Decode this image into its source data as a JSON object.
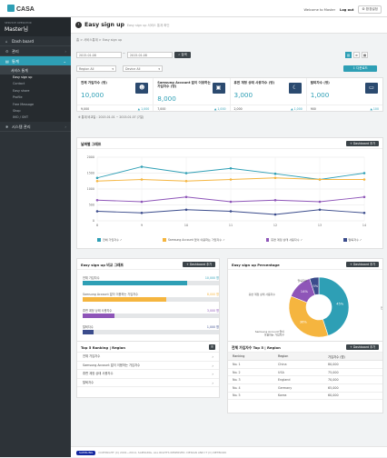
{
  "app": {
    "logo": "CASA"
  },
  "topbar": {
    "welcome": "Welcome to Master",
    "logout": "Log out",
    "setup": "환경설정"
  },
  "sidebar": {
    "role": "SERVICE OPERATOR",
    "user": "Master님",
    "items": [
      {
        "label": "Dash board"
      },
      {
        "label": "관리"
      },
      {
        "label": "통계"
      }
    ],
    "sub_title": "서비스 통계",
    "sub_items": [
      "Easy sign up",
      "Contact",
      "Easy share",
      "Profile",
      "Free Message",
      "Shop",
      "IMO / SMT"
    ],
    "bottom_item": "시스템 관리"
  },
  "page": {
    "title": "Easy sign up",
    "subtitle": "Easy sign up 서비스 통계 확인",
    "breadcrumb": "홈 > 서비스통계 > Easy sign up"
  },
  "filter": {
    "date_from": "2015.01.08",
    "date_to": "2015.01.08",
    "search": "검색",
    "region_placeholder": "Region All",
    "device_placeholder": "Device All",
    "download": "다운로드"
  },
  "kpis": [
    {
      "label": "전체 가입자수 (명)",
      "value": "10,000",
      "foot_left": "9,000",
      "foot_right": "▲ 1,000"
    },
    {
      "label": "Samsung Account 없이 이용하는 가입자수 (명)",
      "value": "8,000",
      "foot_left": "7,000",
      "foot_right": "▲ 1,000"
    },
    {
      "label": "휴면 계정 상태 사용자수 (명)",
      "value": "3,000",
      "foot_left": "2,000",
      "foot_right": "▲ 1,000"
    },
    {
      "label": "탈퇴자수 (명)",
      "value": "1,000",
      "foot_left": "900",
      "foot_right": "▲ 100"
    }
  ],
  "note": "※ 통계 비교일 : 2015.01.01 ~ 2015.01.07 (7일)",
  "daily_panel": {
    "title": "날짜별 그래프",
    "button": "Dashboard 추가"
  },
  "bar_panel": {
    "title": "Easy sign up 비교 그래프",
    "button": "Dashboard 추가"
  },
  "pie_panel": {
    "title": "Easy sign up Percentage",
    "button": "Dashboard 추가"
  },
  "top5_panel": {
    "title": "Top 5 Ranking | Region"
  },
  "region_panel": {
    "title": "전체 가입자수 Top 5 | Region",
    "button": "Dashboard 추가"
  },
  "top5_list": [
    "전체 가입자수",
    "Samsung Account 없이 이용하는 가입자수",
    "휴면 계정 상태 사용자수",
    "탈퇴자수"
  ],
  "region_table": {
    "headers": [
      "Ranking",
      "Region",
      "가입자수 (명)"
    ],
    "rows": [
      [
        "No. 1",
        "China",
        "80,000"
      ],
      [
        "No. 2",
        "USA",
        "75,000"
      ],
      [
        "No. 3",
        "England",
        "70,000"
      ],
      [
        "No. 4",
        "Germany",
        "65,000"
      ],
      [
        "No. 5",
        "Korea",
        "60,000"
      ]
    ]
  },
  "footer": {
    "brand": "SAMSUNG",
    "copyright": "COPYRIGHT (C) 2001~2014, SAMSUNG, ALL RIGHTS RESERVED. DESIGN AND IT (C) NETBOOK"
  },
  "colors": {
    "teal": "#2e9fb5",
    "orange": "#f5b53f",
    "purple": "#8e55b8",
    "navy": "#3b4c8c"
  },
  "chart_data": [
    {
      "type": "line",
      "title": "날짜별 그래프",
      "x": [
        8,
        9,
        10,
        11,
        12,
        13,
        14
      ],
      "ylim": [
        0,
        2000
      ],
      "yticks": [
        0,
        500,
        1000,
        1500,
        2000
      ],
      "series": [
        {
          "name": "전체 가입자수",
          "color": "#2e9fb5",
          "values": [
            1350,
            1700,
            1500,
            1650,
            1480,
            1300,
            1500
          ]
        },
        {
          "name": "Samsung Account 없이 이용하는 가입자수",
          "color": "#f5b53f",
          "values": [
            1250,
            1300,
            1250,
            1300,
            1350,
            1300,
            1300
          ]
        },
        {
          "name": "휴면 계정 상태 사용자수",
          "color": "#8e55b8",
          "values": [
            650,
            600,
            750,
            600,
            650,
            600,
            750
          ]
        },
        {
          "name": "탈퇴자수",
          "color": "#3b4c8c",
          "values": [
            300,
            250,
            350,
            300,
            200,
            350,
            250
          ]
        }
      ],
      "grid": true
    },
    {
      "type": "bar",
      "title": "Easy sign up 비교 그래프",
      "orientation": "horizontal",
      "categories": [
        "전체 가입자수",
        "Samsung Account 없이 이용하는 가입자수",
        "휴면 계정 상태 사용자수",
        "탈퇴자수"
      ],
      "values": [
        10000,
        8000,
        3000,
        1000
      ],
      "labels": [
        "10,000 명",
        "8,000 명",
        "3,000 명",
        "1,000 명"
      ],
      "colors": [
        "#2e9fb5",
        "#f5b53f",
        "#8e55b8",
        "#3b4c8c"
      ],
      "max": 13000
    },
    {
      "type": "pie",
      "title": "Easy sign up Percentage",
      "donut": true,
      "slices": [
        {
          "name": "전체 가입자수",
          "value": 45,
          "label": "45%",
          "color": "#2e9fb5"
        },
        {
          "name": "Samsung Account 없이 이용하는 가입자수",
          "value": 36,
          "label": "36%",
          "color": "#f5b53f"
        },
        {
          "name": "휴면 계정 상태 사용자수",
          "value": 14,
          "label": "14%",
          "color": "#8e55b8"
        },
        {
          "name": "탈퇴자수",
          "value": 5,
          "label": "5%",
          "color": "#3b4c8c"
        }
      ]
    }
  ]
}
